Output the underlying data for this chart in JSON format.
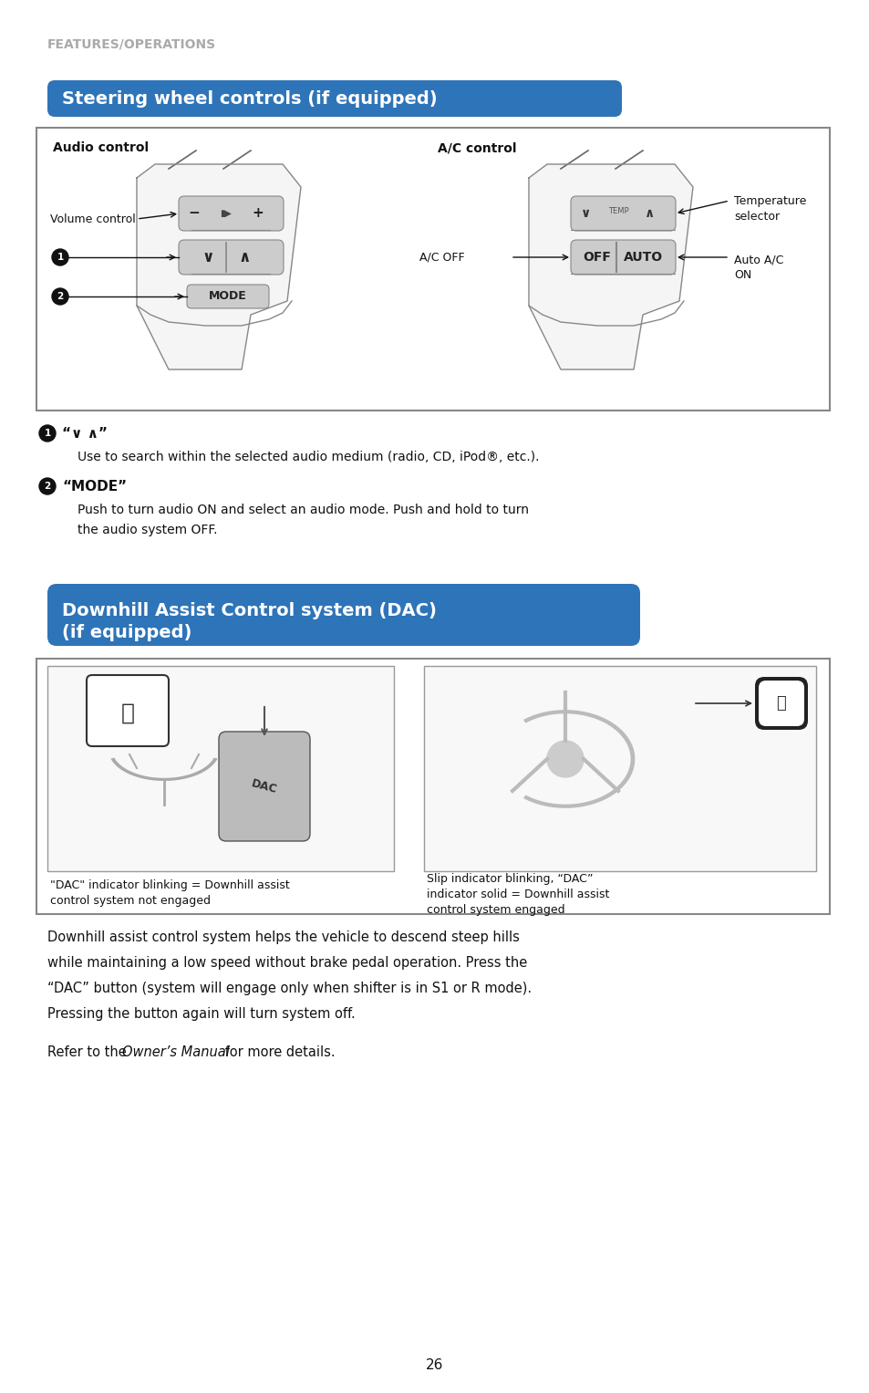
{
  "page_bg": "#ffffff",
  "header_text": "FEATURES/OPERATIONS",
  "header_color": "#aaaaaa",
  "section1_title": "Steering wheel controls (if equipped)",
  "section1_title_bg": "#2e74b8",
  "section1_title_color": "#ffffff",
  "section2_title_line1": "Downhill Assist Control system (DAC)",
  "section2_title_line2": "(if equipped)",
  "section2_title_bg": "#2e74b8",
  "section2_title_color": "#ffffff",
  "audio_label": "Audio control",
  "ac_label": "A/C control",
  "volume_label": "Volume control",
  "ac_off_label": "A/C OFF",
  "temp_label": "Temperature\nselector",
  "auto_ac_label": "Auto A/C\nON",
  "bullet1_text": "Use to search within the selected audio medium (radio, CD, iPod®, etc.).",
  "bullet2_text_1": "Push to turn audio ON and select an audio mode. Push and hold to turn",
  "bullet2_text_2": "the audio system OFF.",
  "dac_caption_left": "\"DAC\" indicator blinking = Downhill assist\ncontrol system not engaged",
  "dac_caption_right": "Slip indicator blinking, “DAC”\nindicator solid = Downhill assist\ncontrol system engaged",
  "body_line1": "Downhill assist control system helps the vehicle to descend steep hills",
  "body_line2": "while maintaining a low speed without brake pedal operation. Press the",
  "body_line3": "“DAC” button (system will engage only when shifter is in S1 or R mode).",
  "body_line4": "Pressing the button again will turn system off.",
  "body_refer1": "Refer to the ",
  "body_refer2": "Owner’s Manual",
  "body_refer3": " for more details.",
  "page_number": "26"
}
